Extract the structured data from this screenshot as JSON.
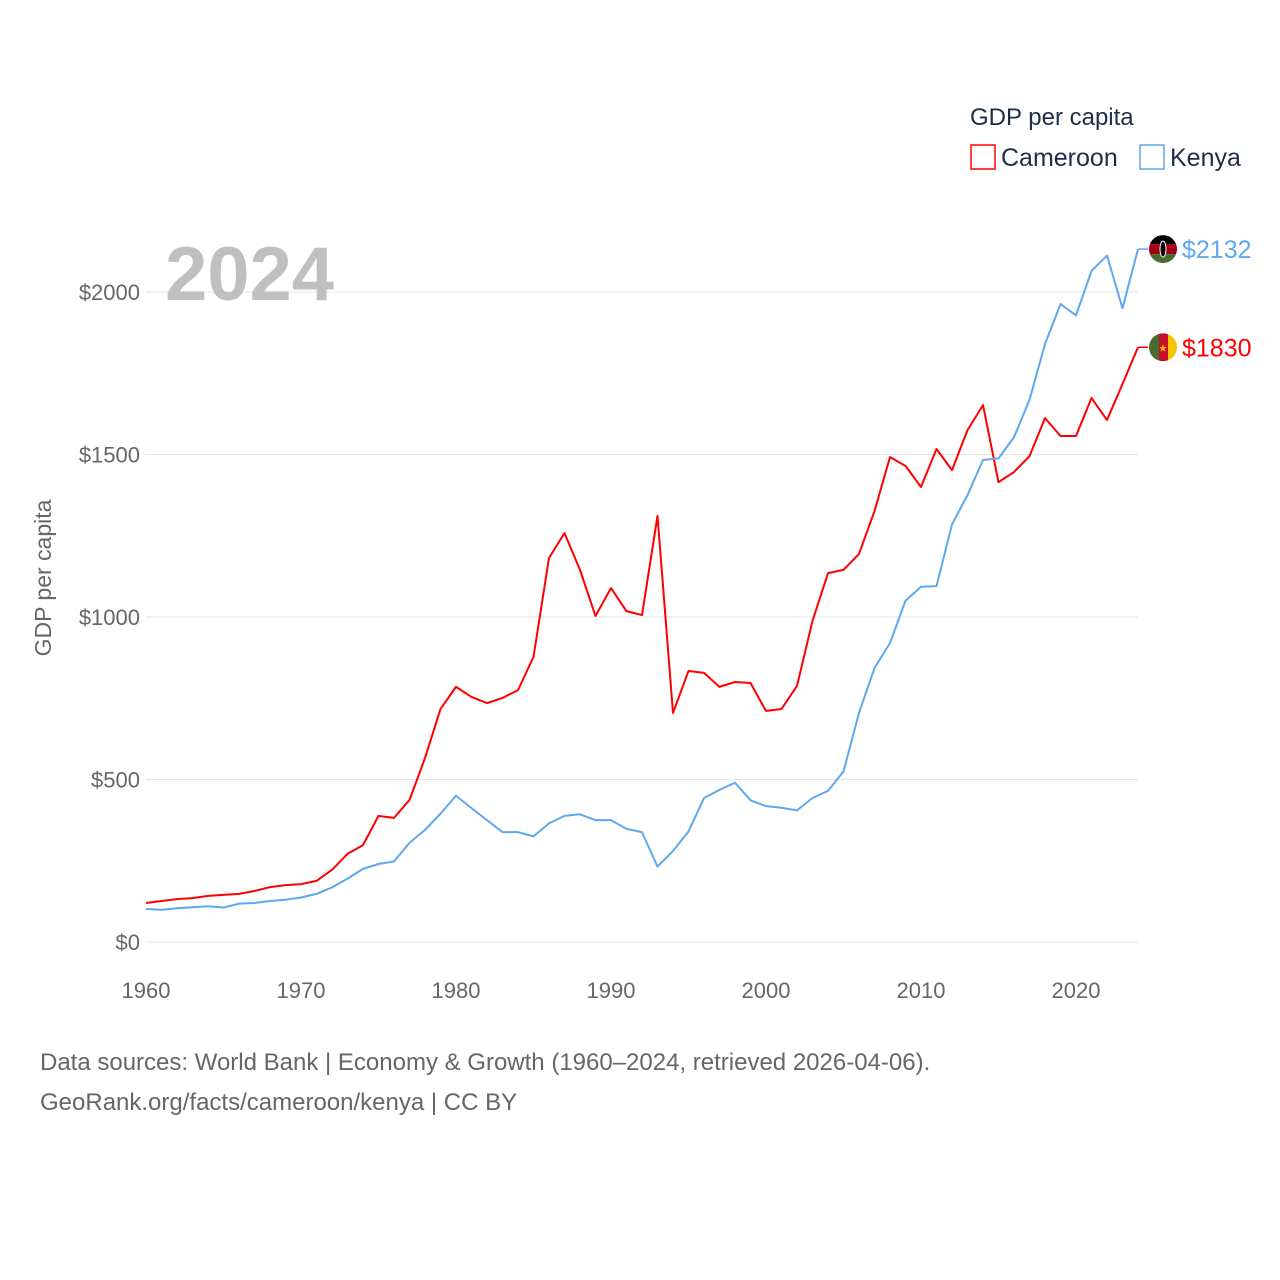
{
  "chart_data": {
    "type": "line",
    "title": "GDP per capita",
    "year_label": "2024",
    "ylabel": "GDP per capita",
    "xlabel": "",
    "xlim": [
      1960,
      2024
    ],
    "ylim": [
      0,
      2200
    ],
    "x_ticks": [
      "1960",
      "1970",
      "1980",
      "1990",
      "2000",
      "2010",
      "2020"
    ],
    "x_tick_values": [
      1960,
      1970,
      1980,
      1990,
      2000,
      2010,
      2020
    ],
    "y_ticks": [
      "$0",
      "$500",
      "$1000",
      "$1500",
      "$2000"
    ],
    "y_tick_values": [
      0,
      500,
      1000,
      1500,
      2000
    ],
    "grid": true,
    "legend_placement": "top-right",
    "x": [
      1960,
      1961,
      1962,
      1963,
      1964,
      1965,
      1966,
      1967,
      1968,
      1969,
      1970,
      1971,
      1972,
      1973,
      1974,
      1975,
      1976,
      1977,
      1978,
      1979,
      1980,
      1981,
      1982,
      1983,
      1984,
      1985,
      1986,
      1987,
      1988,
      1989,
      1990,
      1991,
      1992,
      1993,
      1994,
      1995,
      1996,
      1997,
      1998,
      1999,
      2000,
      2001,
      2002,
      2003,
      2004,
      2005,
      2006,
      2007,
      2008,
      2009,
      2010,
      2011,
      2012,
      2013,
      2014,
      2015,
      2016,
      2017,
      2018,
      2019,
      2020,
      2021,
      2022,
      2023,
      2024
    ],
    "series": [
      {
        "name": "Cameroon",
        "color": "#ff0000",
        "end_label": "$1830",
        "values": [
          120,
          126,
          132,
          135,
          142,
          145,
          148,
          157,
          169,
          175,
          178,
          188,
          222,
          271,
          298,
          388,
          382,
          437,
          566,
          717,
          785,
          754,
          735,
          751,
          775,
          877,
          1182,
          1258,
          1145,
          1003,
          1089,
          1018,
          1006,
          1311,
          705,
          834,
          828,
          785,
          800,
          797,
          711,
          717,
          788,
          988,
          1135,
          1145,
          1194,
          1326,
          1492,
          1465,
          1400,
          1517,
          1452,
          1575,
          1652,
          1415,
          1446,
          1495,
          1612,
          1557,
          1557,
          1674,
          1606,
          1717,
          1830
        ]
      },
      {
        "name": "Kenya",
        "color": "#5ea8ee",
        "end_label": "$2132",
        "values": [
          102,
          99,
          104,
          107,
          110,
          106,
          118,
          120,
          126,
          130,
          137,
          148,
          168,
          195,
          225,
          240,
          248,
          305,
          345,
          395,
          450,
          412,
          375,
          338,
          338,
          325,
          365,
          388,
          393,
          375,
          375,
          348,
          338,
          232,
          280,
          340,
          443,
          468,
          490,
          436,
          418,
          413,
          405,
          443,
          465,
          525,
          705,
          843,
          920,
          1050,
          1093,
          1095,
          1285,
          1375,
          1483,
          1488,
          1553,
          1668,
          1840,
          1963,
          1928,
          2065,
          2112,
          1950,
          2132
        ]
      }
    ]
  },
  "footer": {
    "line1": "Data sources: World Bank | Economy & Growth (1960–2024, retrieved 2026-04-06).",
    "line2": "GeoRank.org/facts/cameroon/kenya | CC BY"
  }
}
